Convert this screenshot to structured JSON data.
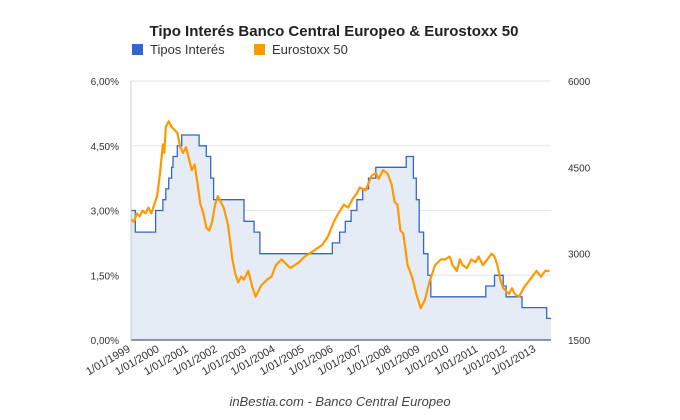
{
  "chart_data": {
    "type": "line",
    "title": "Tipo Interés Banco Central Europeo & Eurostoxx 50",
    "legend_position": "top",
    "x_tick_labels": [
      "1/01/1999",
      "1/01/2000",
      "1/01/2001",
      "1/01/2002",
      "1/01/2003",
      "1/01/2004",
      "1/01/2005",
      "1/01/2006",
      "1/01/2007",
      "1/01/2008",
      "1/01/2009",
      "1/01/2010",
      "1/01/2011",
      "1/01/2012",
      "1/01/2013"
    ],
    "x_range": [
      1999.0,
      2013.5
    ],
    "y_left": {
      "ticks": [
        "0,00%",
        "1,50%",
        "3,00%",
        "4,50%",
        "6,00%"
      ],
      "ylim": [
        0,
        6
      ]
    },
    "y_right": {
      "ticks": [
        "1500",
        "3000",
        "4500",
        "6000"
      ],
      "ylim": [
        1500,
        6000
      ]
    },
    "source": "inBestia.com - Banco Central Europeo",
    "series": [
      {
        "name": "Tipos Interés",
        "color": "#3366cc",
        "area_fill": "#e5ecf6",
        "axis": "left",
        "step": true,
        "x": [
          1999.0,
          1999.15,
          1999.3,
          1999.85,
          2000.1,
          2000.2,
          2000.3,
          2000.4,
          2000.45,
          2000.6,
          2000.75,
          2000.85,
          2001.35,
          2001.45,
          2001.6,
          2001.75,
          2001.85,
          2002.9,
          2003.25,
          2003.45,
          2004.0,
          2005.95,
          2006.2,
          2006.4,
          2006.6,
          2006.8,
          2007.0,
          2007.2,
          2007.45,
          2008.5,
          2008.75,
          2008.85,
          2008.95,
          2009.1,
          2009.25,
          2009.35,
          2011.25,
          2011.55,
          2011.85,
          2011.95,
          2012.5,
          2013.35,
          2013.5
        ],
        "y": [
          3.0,
          2.5,
          2.5,
          3.0,
          3.25,
          3.5,
          3.75,
          4.0,
          4.25,
          4.5,
          4.75,
          4.75,
          4.5,
          4.5,
          4.25,
          3.75,
          3.25,
          2.75,
          2.5,
          2.0,
          2.0,
          2.25,
          2.5,
          2.75,
          3.0,
          3.25,
          3.5,
          3.75,
          4.0,
          4.25,
          3.75,
          3.25,
          2.5,
          2.0,
          1.5,
          1.0,
          1.25,
          1.5,
          1.25,
          1.0,
          0.75,
          0.5,
          0.5
        ]
      },
      {
        "name": "Eurostoxx 50",
        "color": "#ff9900",
        "axis": "right",
        "x": [
          1999.0,
          1999.1,
          1999.2,
          1999.3,
          1999.4,
          1999.5,
          1999.6,
          1999.7,
          1999.8,
          1999.9,
          2000.0,
          2000.1,
          2000.15,
          2000.2,
          2000.3,
          2000.4,
          2000.5,
          2000.6,
          2000.7,
          2000.8,
          2000.9,
          2001.0,
          2001.1,
          2001.2,
          2001.3,
          2001.4,
          2001.5,
          2001.6,
          2001.7,
          2001.8,
          2001.9,
          2002.0,
          2002.2,
          2002.35,
          2002.5,
          2002.6,
          2002.7,
          2002.8,
          2002.9,
          2003.05,
          2003.2,
          2003.3,
          2003.5,
          2003.7,
          2003.85,
          2004.0,
          2004.2,
          2004.3,
          2004.5,
          2004.65,
          2004.8,
          2005.0,
          2005.3,
          2005.6,
          2005.8,
          2006.0,
          2006.1,
          2006.35,
          2006.5,
          2006.65,
          2006.8,
          2006.9,
          2007.1,
          2007.3,
          2007.45,
          2007.55,
          2007.7,
          2007.85,
          2008.0,
          2008.1,
          2008.2,
          2008.3,
          2008.4,
          2008.55,
          2008.7,
          2008.85,
          2009.0,
          2009.15,
          2009.3,
          2009.5,
          2009.7,
          2009.85,
          2010.0,
          2010.1,
          2010.25,
          2010.35,
          2010.45,
          2010.6,
          2010.75,
          2010.9,
          2011.0,
          2011.15,
          2011.3,
          2011.45,
          2011.55,
          2011.65,
          2011.75,
          2011.85,
          2011.95,
          2012.05,
          2012.15,
          2012.25,
          2012.4,
          2012.55,
          2012.7,
          2012.85,
          2013.0,
          2013.15,
          2013.3,
          2013.45
        ],
        "y": [
          3600,
          3550,
          3700,
          3650,
          3750,
          3700,
          3800,
          3700,
          3850,
          4000,
          4400,
          4900,
          4750,
          5200,
          5300,
          5200,
          5150,
          5100,
          4850,
          4750,
          4850,
          4650,
          4450,
          4550,
          4200,
          3850,
          3700,
          3450,
          3400,
          3550,
          3850,
          4000,
          3800,
          3500,
          2900,
          2650,
          2500,
          2600,
          2550,
          2700,
          2400,
          2250,
          2450,
          2550,
          2600,
          2800,
          2900,
          2850,
          2750,
          2800,
          2850,
          2950,
          3050,
          3150,
          3300,
          3550,
          3650,
          3850,
          3800,
          3950,
          4050,
          4150,
          4100,
          4350,
          4400,
          4300,
          4450,
          4400,
          4200,
          3900,
          3850,
          3400,
          3350,
          2800,
          2600,
          2300,
          2050,
          2200,
          2500,
          2800,
          2900,
          2900,
          2950,
          2800,
          2700,
          2900,
          2800,
          2750,
          2900,
          2850,
          2950,
          2800,
          2900,
          3000,
          2950,
          2800,
          2550,
          2400,
          2350,
          2300,
          2400,
          2300,
          2250,
          2400,
          2500,
          2600,
          2700,
          2600,
          2700,
          2700
        ]
      }
    ]
  }
}
